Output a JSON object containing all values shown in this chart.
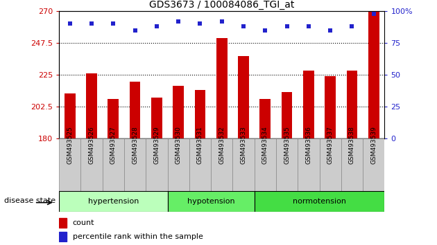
{
  "title": "GDS3673 / 100084086_TGI_at",
  "samples": [
    "GSM493525",
    "GSM493526",
    "GSM493527",
    "GSM493528",
    "GSM493529",
    "GSM493530",
    "GSM493531",
    "GSM493532",
    "GSM493533",
    "GSM493534",
    "GSM493535",
    "GSM493536",
    "GSM493537",
    "GSM493538",
    "GSM493539"
  ],
  "count_values": [
    212,
    226,
    208,
    220,
    209,
    217,
    214,
    251,
    238,
    208,
    213,
    228,
    224,
    228,
    270
  ],
  "percentile_values": [
    90,
    90,
    90,
    85,
    88,
    92,
    90,
    92,
    88,
    85,
    88,
    88,
    85,
    88,
    98
  ],
  "ylim_left": [
    180,
    270
  ],
  "ylim_right": [
    0,
    100
  ],
  "yticks_left": [
    180,
    202.5,
    225,
    247.5,
    270
  ],
  "ytick_labels_left": [
    "180",
    "202.5",
    "225",
    "247.5",
    "270"
  ],
  "yticks_right": [
    0,
    25,
    50,
    75,
    100
  ],
  "ytick_labels_right": [
    "0",
    "25",
    "50",
    "75",
    "100%"
  ],
  "bar_color": "#cc0000",
  "dot_color": "#2222cc",
  "grid_lines": [
    202.5,
    225,
    247.5
  ],
  "groups": [
    {
      "label": "hypertension",
      "start": 0,
      "end": 5,
      "color": "#bbffbb"
    },
    {
      "label": "hypotension",
      "start": 5,
      "end": 9,
      "color": "#66ee66"
    },
    {
      "label": "normotension",
      "start": 9,
      "end": 15,
      "color": "#44dd44"
    }
  ],
  "disease_state_label": "disease state",
  "legend_count_label": "count",
  "legend_percentile_label": "percentile rank within the sample",
  "left_label_color": "#cc0000",
  "right_label_color": "#2222cc",
  "xtick_bg_color": "#cccccc",
  "bar_width": 0.5
}
